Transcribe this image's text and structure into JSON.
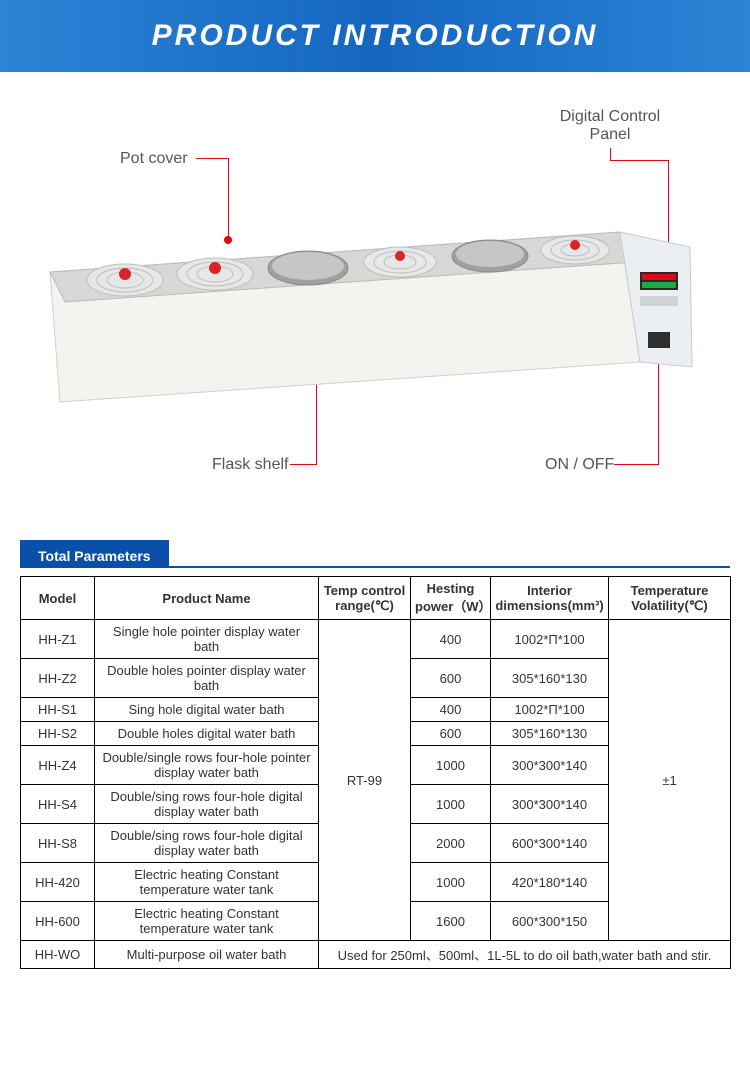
{
  "header": {
    "title": "PRODUCT  INTRODUCTION",
    "bg_gradient_start": "#2b84d6",
    "bg_gradient_mid": "#1566c0",
    "bg_gradient_end": "#2b84d6",
    "text_color": "#ffffff"
  },
  "callouts": {
    "pot_cover": "Pot cover",
    "digital_panel_line1": "Digital Control",
    "digital_panel_line2": "Panel",
    "flask_shelf": "Flask shelf",
    "on_off": "ON / OFF",
    "line_color": "#e30613",
    "label_color": "#555555"
  },
  "product_illustration": {
    "body_color": "#f3f3f0",
    "top_color": "#d6d8d6",
    "top_edge_color": "#b9bbb9",
    "hole_light": "#c5c7c5",
    "hole_dark": "#9fa19f",
    "lid_ring": "#e6e7e6",
    "lid_ring_stroke": "#bdbfbd",
    "knob_color": "#d8232a",
    "panel_body": "#eceff1",
    "display_red": "#e30613",
    "display_green": "#1faa46",
    "switch_color": "#2f2f2f"
  },
  "section": {
    "label": "Total Parameters",
    "bar_color": "#0a4fa8"
  },
  "table": {
    "columns": [
      "Model",
      "Product Name",
      "Temp control range(℃)",
      "Hesting power（W）",
      "Interior dimensions(mm³)",
      "Temperature Volatility(℃)"
    ],
    "temp_range_merged": "RT-99",
    "volatility_merged": "±1",
    "rows": [
      {
        "model": "HH-Z1",
        "name": "Single hole pointer display water bath",
        "power": "400",
        "dim": "1002*Π*100"
      },
      {
        "model": "HH-Z2",
        "name": "Double holes pointer display water bath",
        "power": "600",
        "dim": "305*160*130"
      },
      {
        "model": "HH-S1",
        "name": "Sing hole digital water bath",
        "power": "400",
        "dim": "1002*Π*100"
      },
      {
        "model": "HH-S2",
        "name": "Double holes digital water bath",
        "power": "600",
        "dim": "305*160*130"
      },
      {
        "model": "HH-Z4",
        "name": "Double/single rows four-hole pointer display water bath",
        "power": "1000",
        "dim": "300*300*140"
      },
      {
        "model": "HH-S4",
        "name": "Double/sing rows four-hole digital display water bath",
        "power": "1000",
        "dim": "300*300*140"
      },
      {
        "model": "HH-S8",
        "name": "Double/sing rows four-hole digital display water bath",
        "power": "2000",
        "dim": "600*300*140"
      },
      {
        "model": "HH-420",
        "name": "Electric heating Constant temperature water tank",
        "power": "1000",
        "dim": "420*180*140"
      },
      {
        "model": "HH-600",
        "name": "Electric heating Constant temperature water tank",
        "power": "1600",
        "dim": "600*300*150"
      }
    ],
    "footer_row": {
      "model": "HH-WO",
      "name": "Multi-purpose oil water bath",
      "merged_text": "Used for 250ml、500ml、1L-5L to do oil bath,water bath and stir."
    }
  }
}
